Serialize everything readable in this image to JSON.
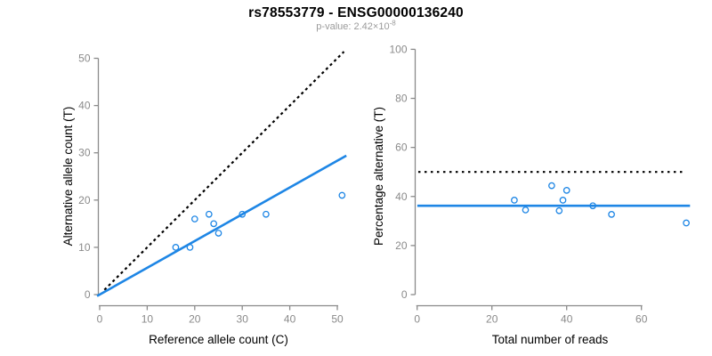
{
  "header": {
    "title": "rs78553779 - ENSG00000136240",
    "subtitle_label": "p-value: 2.42×10",
    "subtitle_exponent": "-8"
  },
  "colors": {
    "point_blue": "#1e86e5",
    "line_blue": "#1e86e5",
    "identity_black": "#000000",
    "axis_gray": "#8a8a8a",
    "tick_label_gray": "#8a8a8a",
    "axis_title_black": "#000000",
    "title_black": "#000000",
    "subtitle_gray": "#9b9b9b"
  },
  "chart_data": [
    {
      "id": "allele-counts",
      "type": "scatter",
      "title": "",
      "xlabel": "Reference allele count (C)",
      "ylabel": "Alternative allele count (T)",
      "xticks": [
        0,
        10,
        20,
        30,
        40,
        50
      ],
      "yticks": [
        0,
        10,
        20,
        30,
        40,
        50
      ],
      "xlim": [
        0,
        52
      ],
      "ylim": [
        0,
        52
      ],
      "grid": false,
      "points": [
        [
          16,
          10
        ],
        [
          19,
          10
        ],
        [
          20,
          16
        ],
        [
          23,
          17
        ],
        [
          24,
          15
        ],
        [
          25,
          13
        ],
        [
          30,
          17
        ],
        [
          35,
          17
        ],
        [
          51,
          21
        ]
      ],
      "lines": [
        {
          "name": "identity-line",
          "dash": "dashed",
          "color": "#000000",
          "width": 2.2,
          "from": [
            1,
            1
          ],
          "to": [
            51.4,
            51.4
          ]
        },
        {
          "name": "fit-line",
          "dash": "solid",
          "color": "#1e86e5",
          "width": 2.6,
          "from": [
            -0.55,
            -0.31
          ],
          "to": [
            51.9,
            29.4
          ]
        }
      ]
    },
    {
      "id": "percentage-by-depth",
      "type": "scatter",
      "title": "",
      "xlabel": "Total number of reads",
      "ylabel": "Percentage alternative (T)",
      "xticks": [
        0,
        20,
        40,
        60
      ],
      "yticks": [
        0,
        20,
        40,
        60,
        80,
        100
      ],
      "xlim": [
        0,
        73
      ],
      "ylim": [
        0,
        104
      ],
      "grid": false,
      "points": [
        [
          26,
          38.5
        ],
        [
          29,
          34.5
        ],
        [
          36,
          44.4
        ],
        [
          38,
          34.2
        ],
        [
          39,
          38.5
        ],
        [
          40,
          42.5
        ],
        [
          47,
          36.2
        ],
        [
          52,
          32.7
        ],
        [
          72,
          29.2
        ]
      ],
      "lines": [
        {
          "name": "fifty-percent-line",
          "dash": "dotted",
          "color": "#000000",
          "width": 2.2,
          "from": [
            0.3,
            50
          ],
          "to": [
            71.2,
            50
          ]
        },
        {
          "name": "mean-ratio-line",
          "dash": "solid",
          "color": "#1e86e5",
          "width": 2.6,
          "from": [
            0.05,
            36.2
          ],
          "to": [
            73,
            36.2
          ]
        }
      ]
    }
  ]
}
